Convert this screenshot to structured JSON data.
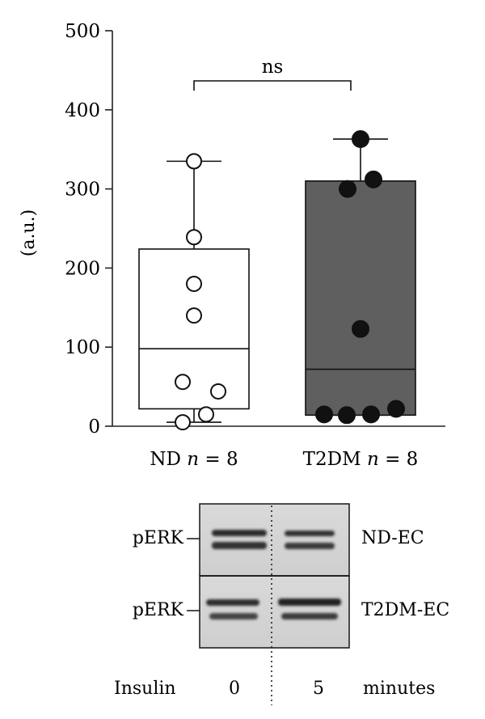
{
  "chart_data": {
    "type": "box",
    "ylabel": "(a.u.)",
    "ylim": [
      0,
      500
    ],
    "yticks": [
      0,
      100,
      200,
      300,
      400,
      500
    ],
    "groups": [
      {
        "label": "ND n = 8",
        "label_plain": "ND",
        "n_text": "n",
        "n_value": "= 8",
        "fill": "#ffffff",
        "marker": "open-circle",
        "box": {
          "q1": 22,
          "median": 98,
          "q3": 224,
          "whisker_low": 5,
          "whisker_high": 335
        },
        "points": [
          5,
          15,
          44,
          56,
          140,
          180,
          239,
          335
        ]
      },
      {
        "label": "T2DM n = 8",
        "label_plain": "T2DM",
        "n_text": "n",
        "n_value": "= 8",
        "fill": "#5f5f5f",
        "marker": "filled-circle",
        "box": {
          "q1": 14,
          "median": 72,
          "q3": 310,
          "whisker_low": 14,
          "whisker_high": 363
        },
        "points": [
          15,
          14,
          15,
          22,
          123,
          300,
          312,
          363
        ]
      }
    ],
    "significance": {
      "label": "ns",
      "between": [
        0,
        1
      ]
    }
  },
  "blot": {
    "rows": [
      {
        "left_label": "pERK",
        "right_label": "ND-EC"
      },
      {
        "left_label": "pERK",
        "right_label": "T2DM-EC"
      }
    ],
    "footer": {
      "label": "Insulin",
      "lane_values": [
        "0",
        "5"
      ],
      "unit": "minutes"
    }
  }
}
